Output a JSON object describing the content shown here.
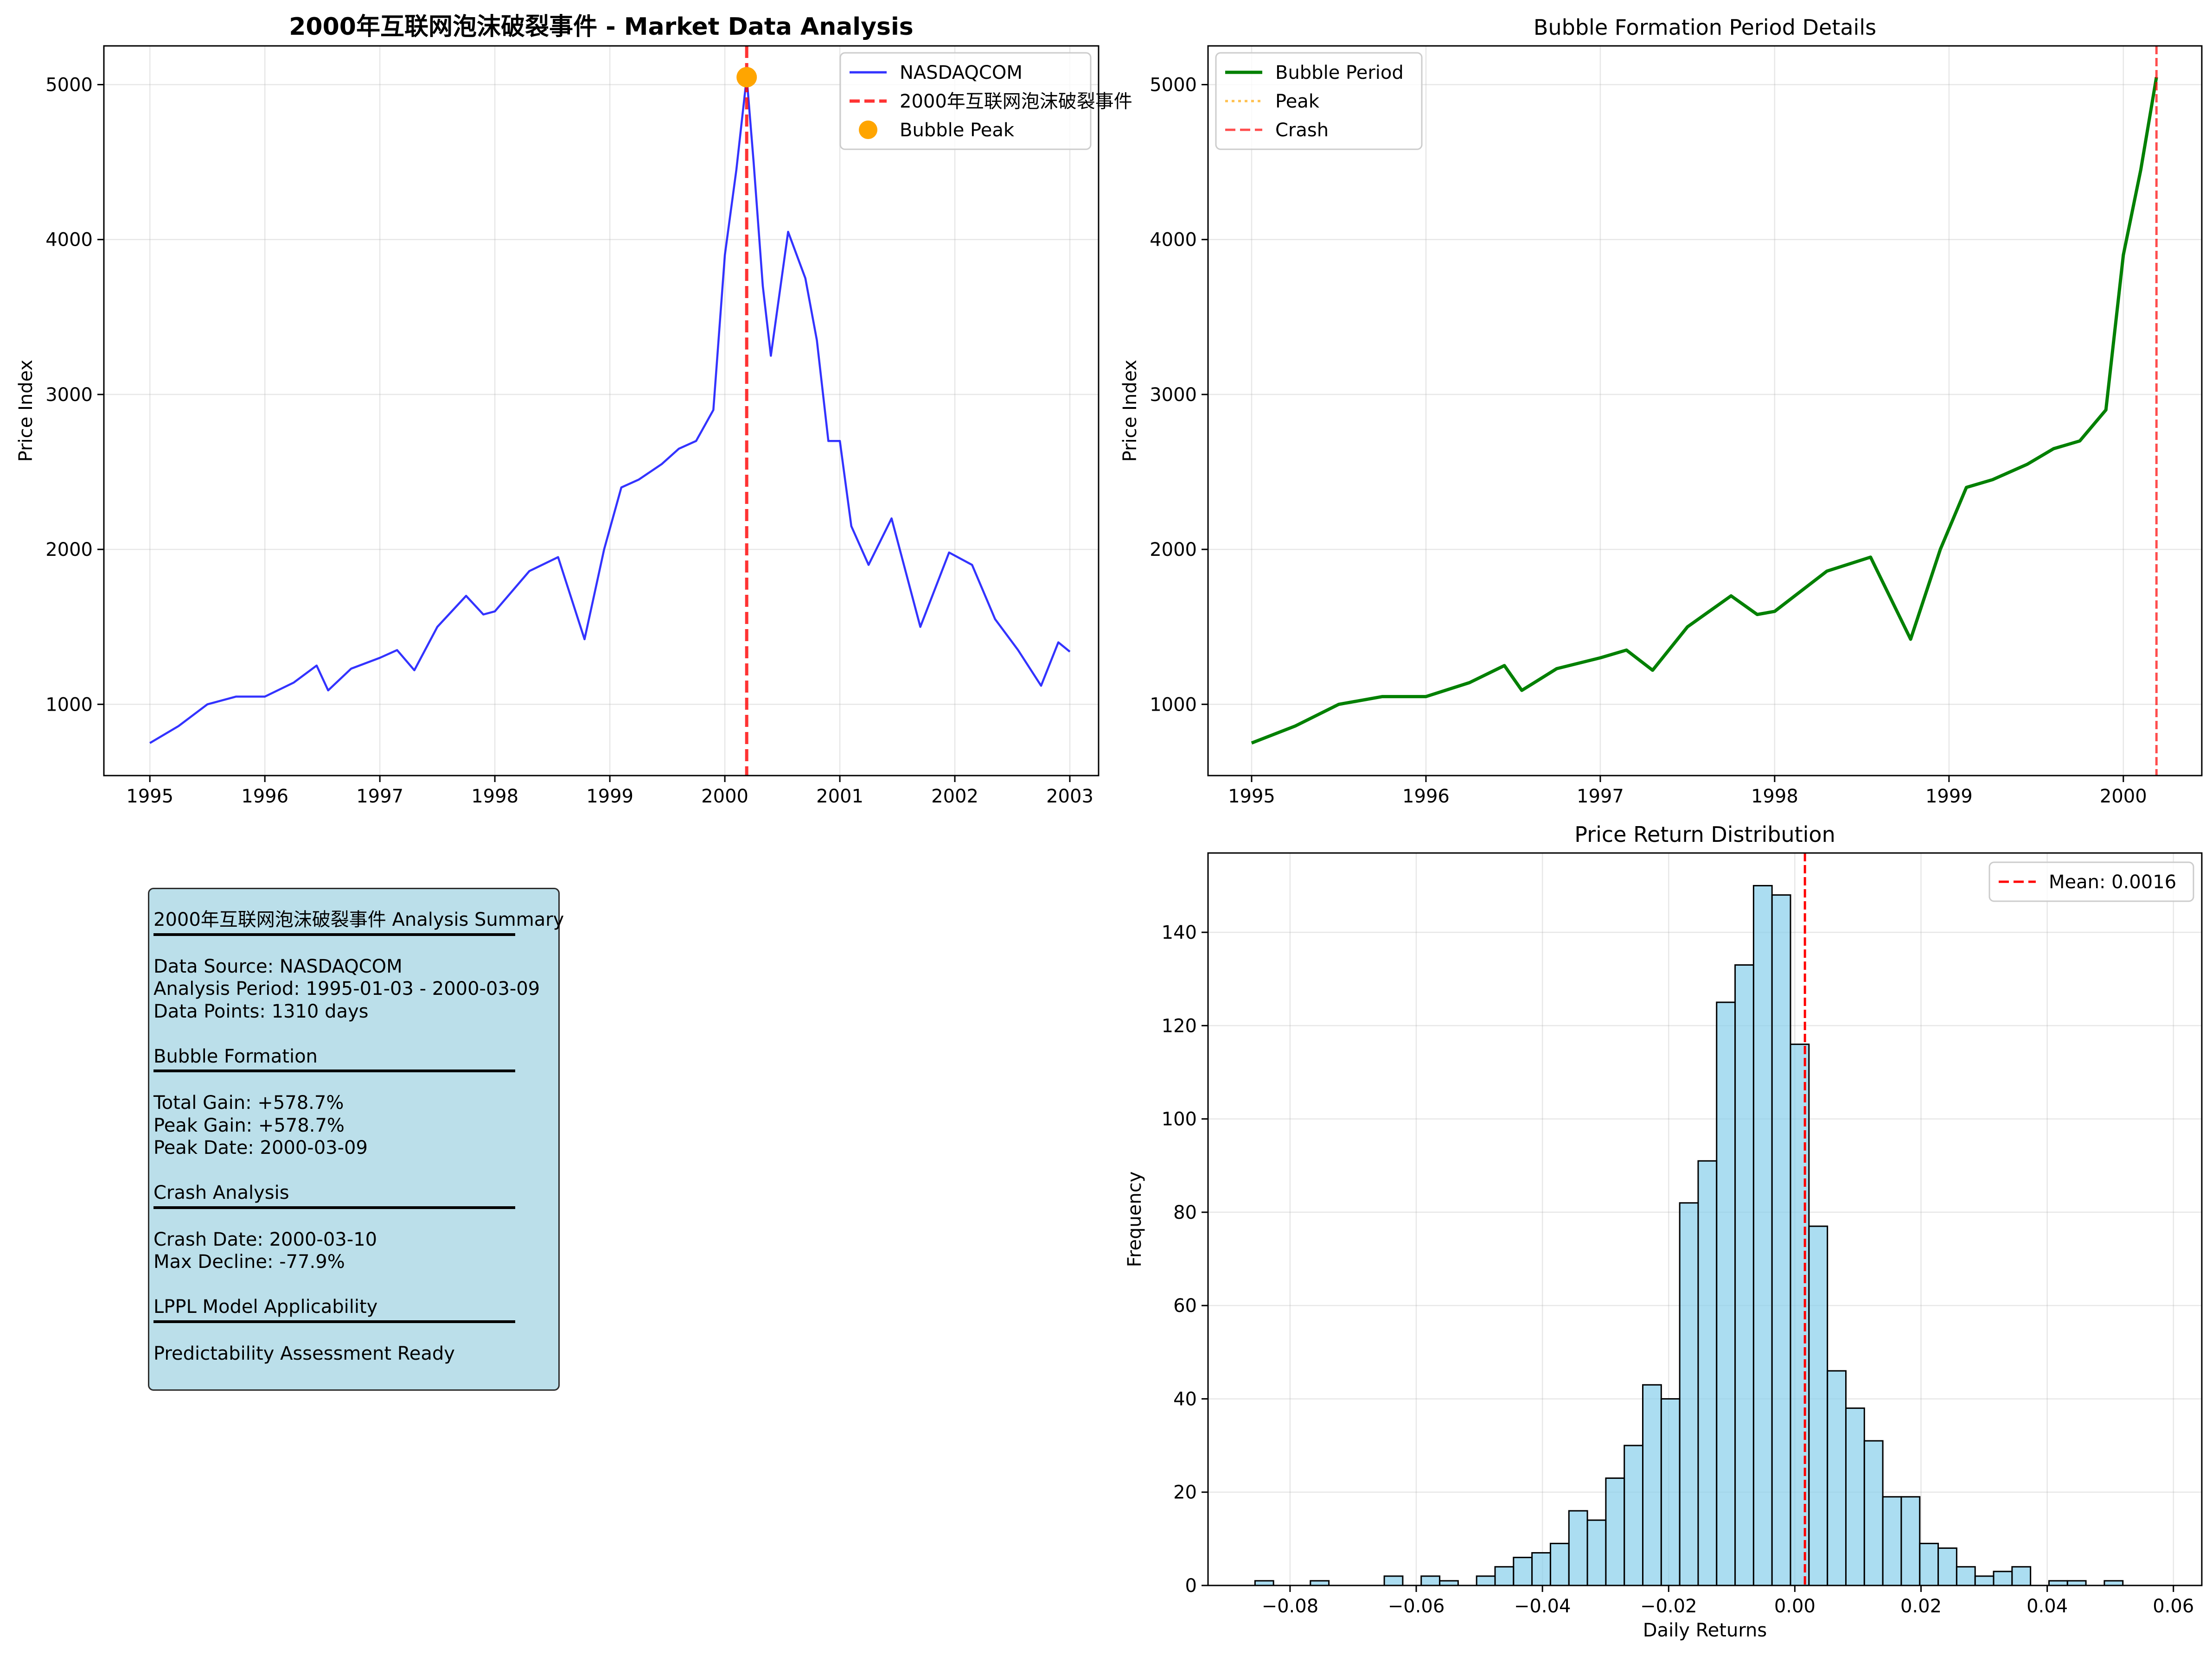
{
  "chart_data": [
    {
      "type": "line",
      "title": "2000年互联网泡沫破裂事件 - Market Data Analysis",
      "xlabel": "",
      "ylabel": "Price Index",
      "xlim": [
        1994.6,
        2003.25
      ],
      "ylim": [
        540,
        5250
      ],
      "x_ticks": [
        1995,
        1996,
        1997,
        1998,
        1999,
        2000,
        2001,
        2002,
        2003
      ],
      "y_ticks": [
        1000,
        2000,
        3000,
        4000,
        5000
      ],
      "grid": true,
      "legend": "top-right",
      "series": [
        {
          "name": "NASDAQCOM",
          "color": "#0000ff",
          "x": [
            1995.0,
            1995.25,
            1995.5,
            1995.75,
            1996.0,
            1996.25,
            1996.45,
            1996.55,
            1996.75,
            1997.0,
            1997.15,
            1997.3,
            1997.5,
            1997.75,
            1997.9,
            1998.0,
            1998.3,
            1998.55,
            1998.78,
            1998.95,
            1999.1,
            1999.25,
            1999.45,
            1999.6,
            1999.75,
            1999.9,
            2000.0,
            2000.1,
            2000.19,
            2000.25,
            2000.33,
            2000.4,
            2000.55,
            2000.7,
            2000.8,
            2000.9,
            2001.0,
            2001.1,
            2001.25,
            2001.45,
            2001.7,
            2001.95,
            2002.15,
            2002.35,
            2002.55,
            2002.75,
            2002.9,
            2003.0
          ],
          "y": [
            750,
            860,
            1000,
            1050,
            1050,
            1140,
            1250,
            1090,
            1230,
            1300,
            1350,
            1220,
            1500,
            1700,
            1580,
            1600,
            1860,
            1950,
            1420,
            2000,
            2400,
            2450,
            2550,
            2650,
            2700,
            2900,
            3900,
            4450,
            5048,
            4500,
            3700,
            3250,
            4050,
            3750,
            3350,
            2700,
            2700,
            2150,
            1900,
            2200,
            1500,
            1980,
            1900,
            1550,
            1350,
            1120,
            1400,
            1340
          ]
        }
      ],
      "annotations": [
        {
          "type": "vline",
          "x": 2000.19,
          "label": "2000年互联网泡沫破裂事件",
          "color": "#ff0000"
        },
        {
          "type": "point",
          "x": 2000.19,
          "y": 5048,
          "label": "Bubble Peak",
          "color": "#ffa500"
        }
      ]
    },
    {
      "type": "line",
      "title": "Bubble Formation Period Details",
      "xlabel": "",
      "ylabel": "Price Index",
      "xlim": [
        1994.75,
        2000.45
      ],
      "ylim": [
        540,
        5250
      ],
      "x_ticks": [
        1995,
        1996,
        1997,
        1998,
        1999,
        2000
      ],
      "y_ticks": [
        1000,
        2000,
        3000,
        4000,
        5000
      ],
      "grid": true,
      "legend": "top-left",
      "series": [
        {
          "name": "Bubble Period",
          "color": "#008000",
          "x": [
            1995.0,
            1995.25,
            1995.5,
            1995.75,
            1996.0,
            1996.25,
            1996.45,
            1996.55,
            1996.75,
            1997.0,
            1997.15,
            1997.3,
            1997.5,
            1997.75,
            1997.9,
            1998.0,
            1998.3,
            1998.55,
            1998.78,
            1998.95,
            1999.1,
            1999.25,
            1999.45,
            1999.6,
            1999.75,
            1999.9,
            2000.0,
            2000.1,
            2000.19
          ],
          "y": [
            750,
            860,
            1000,
            1050,
            1050,
            1140,
            1250,
            1090,
            1230,
            1300,
            1350,
            1220,
            1500,
            1700,
            1580,
            1600,
            1860,
            1950,
            1420,
            2000,
            2400,
            2450,
            2550,
            2650,
            2700,
            2900,
            3900,
            4450,
            5048
          ]
        }
      ],
      "legend_entries": [
        {
          "label": "Bubble Period",
          "color": "#008000",
          "style": "solid"
        },
        {
          "label": "Peak",
          "color": "#ffa500",
          "style": "dotted"
        },
        {
          "label": "Crash",
          "color": "#ff0000",
          "style": "dashed"
        }
      ],
      "annotations": [
        {
          "type": "vline",
          "x": 2000.19,
          "label": "Crash",
          "color": "#ff0000"
        }
      ]
    },
    {
      "type": "bar",
      "title": "Price Return Distribution",
      "xlabel": "Daily Returns",
      "ylabel": "Frequency",
      "xlim": [
        -0.093,
        0.0645
      ],
      "ylim": [
        0,
        157
      ],
      "x_ticks": [
        -0.08,
        -0.06,
        -0.04,
        -0.02,
        0.0,
        0.02,
        0.04,
        0.06
      ],
      "x_tick_labels": [
        "−0.08",
        "−0.06",
        "−0.04",
        "−0.02",
        "0.00",
        "0.02",
        "0.04",
        "0.06"
      ],
      "y_ticks": [
        0,
        20,
        40,
        60,
        80,
        100,
        120,
        140
      ],
      "grid": true,
      "legend": "top-right",
      "bin_start": -0.08555,
      "bin_width": 0.0029263,
      "counts": [
        1,
        0,
        0,
        1,
        0,
        0,
        0,
        2,
        0,
        2,
        1,
        0,
        2,
        4,
        6,
        7,
        9,
        16,
        14,
        23,
        30,
        43,
        40,
        82,
        91,
        125,
        133,
        150,
        148,
        116,
        77,
        46,
        38,
        31,
        19,
        19,
        9,
        8,
        4,
        2,
        3,
        4,
        0,
        1,
        1,
        0,
        1
      ],
      "mean": 0.0016,
      "mean_label": "Mean: 0.0016"
    }
  ],
  "summary": {
    "title": "2000年互联网泡沫破裂事件 Analysis Summary",
    "data_source": "Data Source: NASDAQCOM",
    "analysis_period": "Analysis Period: 1995-01-03 - 2000-03-09",
    "data_points": "Data Points: 1310 days",
    "bubble_heading": "Bubble Formation",
    "total_gain": "Total Gain: +578.7%",
    "peak_gain": "Peak Gain: +578.7%",
    "peak_date": "Peak Date: 2000-03-09",
    "crash_heading": "Crash Analysis",
    "crash_date": "Crash Date: 2000-03-10",
    "max_decline": "Max Decline: -77.9%",
    "lppl_heading": "LPPL Model Applicability",
    "predictability": "Predictability Assessment Ready"
  }
}
